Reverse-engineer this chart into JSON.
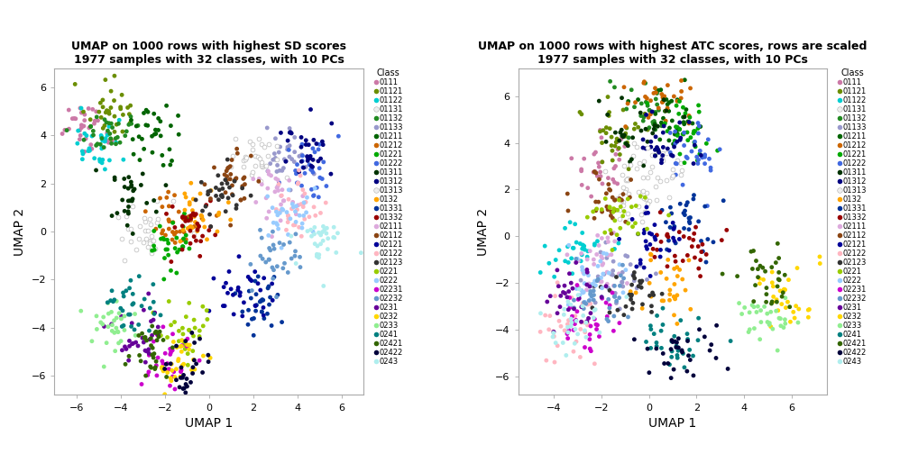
{
  "title1": "UMAP on 1000 rows with highest SD scores\n1977 samples with 32 classes, with 10 PCs",
  "title2": "UMAP on 1000 rows with highest ATC scores, rows are scaled\n1977 samples with 32 classes, with 10 PCs",
  "xlabel": "UMAP 1",
  "ylabel": "UMAP 2",
  "xlim1": [
    -7,
    7
  ],
  "ylim1": [
    -6.8,
    6.8
  ],
  "xlim2": [
    -5.5,
    7.5
  ],
  "ylim2": [
    -6.8,
    7.2
  ],
  "xticks1": [
    -6,
    -4,
    -2,
    0,
    2,
    4,
    6
  ],
  "xticks2": [
    -4,
    -2,
    0,
    2,
    4,
    6
  ],
  "yticks": [
    -6,
    -4,
    -2,
    0,
    2,
    4,
    6
  ],
  "legend_title": "Class",
  "classes": [
    "0111",
    "01121",
    "01122",
    "01131",
    "01132",
    "01133",
    "01211",
    "01212",
    "01221",
    "01222",
    "01311",
    "01312",
    "01313",
    "0132",
    "01331",
    "01332",
    "02111",
    "02112",
    "02121",
    "02122",
    "02123",
    "0221",
    "0222",
    "02231",
    "02232",
    "0231",
    "0232",
    "0233",
    "0241",
    "02421",
    "02422",
    "0243"
  ],
  "colors": [
    "#CC79A7",
    "#8B8B00",
    "#00CED1",
    "#FFFFFF",
    "#228B22",
    "#9999CC",
    "#006400",
    "#D2691E",
    "#00CC00",
    "#4169E1",
    "#003300",
    "#00008B",
    "#FFFFFF",
    "#FFA500",
    "#00008B",
    "#8B0000",
    "#DDA0DD",
    "#8B4513",
    "#000080",
    "#FFB6C1",
    "#333333",
    "#9ACD32",
    "#87CEEB",
    "#CC00CC",
    "#6699CC",
    "#660099",
    "#FFD700",
    "#90EE90",
    "#008080",
    "#336600",
    "#00004B",
    "#AFEEEE"
  ],
  "seed": 42,
  "n_points": 1000,
  "n_classes": 32,
  "bg_color": "#FFFFFF",
  "panel_bg": "#FFFFFF",
  "point_size": 12
}
